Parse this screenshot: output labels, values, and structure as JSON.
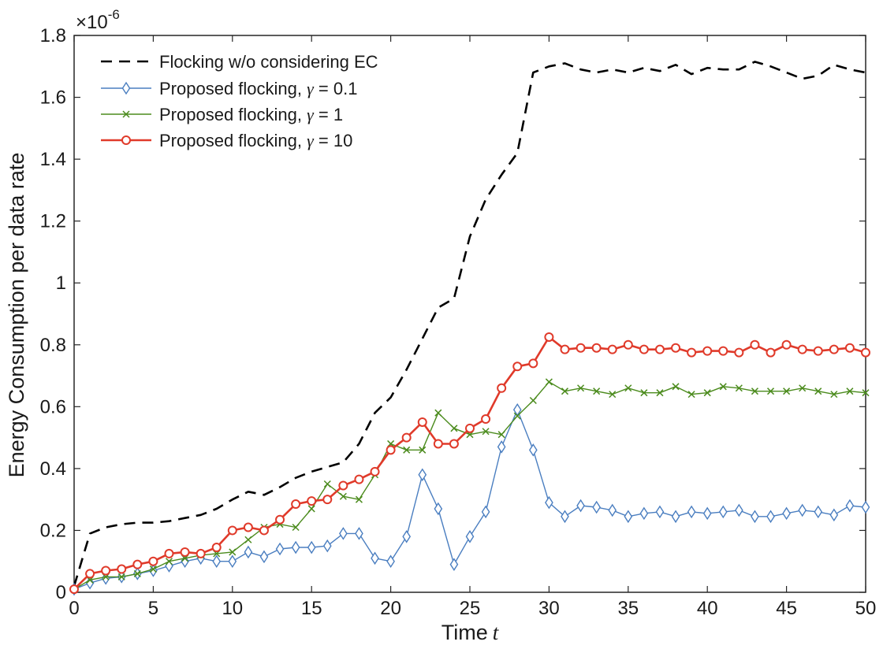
{
  "chart_data": {
    "type": "line",
    "title": "",
    "xlabel": "Time",
    "xlabel_var": "t",
    "ylabel": "Energy Consumption per data rate",
    "y_multiplier": "×10",
    "y_multiplier_exp": "-6",
    "xlim": [
      0,
      50
    ],
    "ylim": [
      0,
      1.8
    ],
    "xticks": [
      0,
      5,
      10,
      15,
      20,
      25,
      30,
      35,
      40,
      45,
      50
    ],
    "yticks": [
      0,
      0.2,
      0.4,
      0.6,
      0.8,
      1,
      1.2,
      1.4,
      1.6,
      1.8
    ],
    "ytick_labels": [
      "0",
      "0.2",
      "0.4",
      "0.6",
      "0.8",
      "1",
      "1.2",
      "1.4",
      "1.6",
      "1.8"
    ],
    "grid": false,
    "legend_position": "top-left",
    "x": [
      0,
      1,
      2,
      3,
      4,
      5,
      6,
      7,
      8,
      9,
      10,
      11,
      12,
      13,
      14,
      15,
      16,
      17,
      18,
      19,
      20,
      21,
      22,
      23,
      24,
      25,
      26,
      27,
      28,
      29,
      30,
      31,
      32,
      33,
      34,
      35,
      36,
      37,
      38,
      39,
      40,
      41,
      42,
      43,
      44,
      45,
      46,
      47,
      48,
      49,
      50
    ],
    "series": [
      {
        "name": "Flocking w/o considering EC",
        "legend_prefix": "Flocking w/o considering EC",
        "gamma": "",
        "color": "#000000",
        "marker": "none",
        "dashed": true,
        "values": [
          0.02,
          0.19,
          0.21,
          0.22,
          0.225,
          0.225,
          0.23,
          0.24,
          0.25,
          0.27,
          0.3,
          0.325,
          0.315,
          0.34,
          0.37,
          0.39,
          0.405,
          0.42,
          0.48,
          0.58,
          0.63,
          0.72,
          0.82,
          0.92,
          0.95,
          1.15,
          1.27,
          1.35,
          1.42,
          1.68,
          1.7,
          1.71,
          1.69,
          1.68,
          1.69,
          1.68,
          1.695,
          1.685,
          1.705,
          1.675,
          1.695,
          1.69,
          1.69,
          1.715,
          1.7,
          1.68,
          1.66,
          1.67,
          1.705,
          1.69,
          1.68
        ]
      },
      {
        "name": "Proposed flocking, γ = 0.1",
        "legend_prefix": "Proposed flocking,",
        "gamma": "= 0.1",
        "color": "#4a7ec0",
        "marker": "diamond",
        "dashed": false,
        "values": [
          0.01,
          0.03,
          0.045,
          0.05,
          0.06,
          0.07,
          0.085,
          0.1,
          0.11,
          0.1,
          0.1,
          0.13,
          0.115,
          0.14,
          0.145,
          0.145,
          0.15,
          0.19,
          0.19,
          0.11,
          0.1,
          0.18,
          0.38,
          0.27,
          0.09,
          0.18,
          0.26,
          0.47,
          0.59,
          0.46,
          0.29,
          0.245,
          0.28,
          0.275,
          0.265,
          0.245,
          0.255,
          0.26,
          0.245,
          0.26,
          0.255,
          0.26,
          0.265,
          0.245,
          0.245,
          0.255,
          0.265,
          0.26,
          0.25,
          0.28,
          0.275
        ]
      },
      {
        "name": "Proposed flocking, γ = 1",
        "legend_prefix": "Proposed flocking,",
        "gamma": "= 1",
        "color": "#4b8b1d",
        "marker": "x",
        "dashed": false,
        "values": [
          0.01,
          0.04,
          0.05,
          0.05,
          0.06,
          0.075,
          0.1,
          0.11,
          0.12,
          0.125,
          0.13,
          0.17,
          0.21,
          0.22,
          0.21,
          0.27,
          0.35,
          0.31,
          0.3,
          0.38,
          0.48,
          0.46,
          0.46,
          0.58,
          0.53,
          0.51,
          0.52,
          0.51,
          0.57,
          0.62,
          0.68,
          0.65,
          0.66,
          0.65,
          0.64,
          0.66,
          0.645,
          0.645,
          0.665,
          0.64,
          0.645,
          0.665,
          0.66,
          0.65,
          0.65,
          0.65,
          0.66,
          0.65,
          0.64,
          0.65,
          0.645
        ]
      },
      {
        "name": "Proposed flocking, γ = 10",
        "legend_prefix": "Proposed flocking,",
        "gamma": "= 10",
        "color": "#e03a2a",
        "marker": "circle",
        "dashed": false,
        "values": [
          0.01,
          0.06,
          0.07,
          0.075,
          0.09,
          0.1,
          0.125,
          0.13,
          0.125,
          0.145,
          0.2,
          0.21,
          0.2,
          0.235,
          0.285,
          0.295,
          0.3,
          0.345,
          0.365,
          0.39,
          0.46,
          0.5,
          0.55,
          0.48,
          0.48,
          0.53,
          0.56,
          0.66,
          0.73,
          0.74,
          0.825,
          0.785,
          0.79,
          0.79,
          0.785,
          0.8,
          0.785,
          0.785,
          0.79,
          0.775,
          0.78,
          0.78,
          0.775,
          0.8,
          0.775,
          0.8,
          0.785,
          0.78,
          0.785,
          0.79,
          0.775
        ]
      }
    ]
  }
}
